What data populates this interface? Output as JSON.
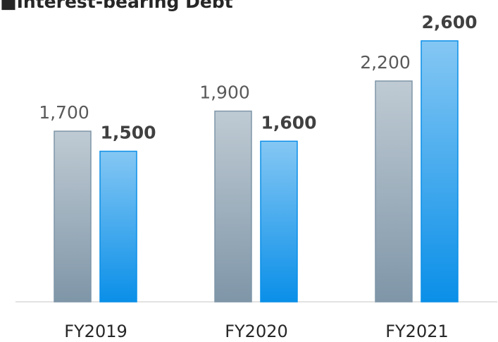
{
  "chart_data": {
    "type": "bar",
    "title": "■Interest-bearing Debt",
    "categories": [
      "FY2019",
      "FY2020",
      "FY2021"
    ],
    "series": [
      {
        "color": "#7f96a8",
        "values": [
          1700,
          1900,
          2200
        ],
        "value_labels": [
          "1,700",
          "1,900",
          "2,200"
        ]
      },
      {
        "color": "#0a8fe8",
        "values": [
          1500,
          1600,
          2600
        ],
        "value_labels": [
          "1,500",
          "1,600",
          "2,600"
        ]
      }
    ],
    "ylim": [
      0,
      3000
    ]
  }
}
